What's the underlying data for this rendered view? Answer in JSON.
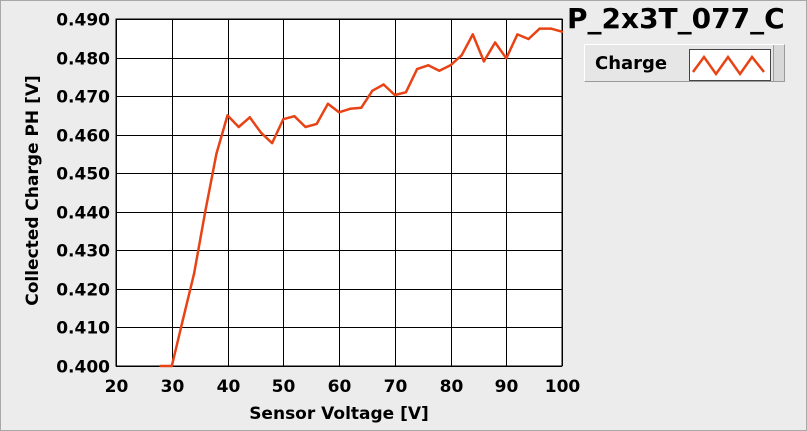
{
  "chart_data": {
    "type": "line",
    "title": "P_2x3T_077_C",
    "xlabel": "Sensor Voltage [V]",
    "ylabel": "Collected Charge PH [V]",
    "xlim": [
      20,
      100
    ],
    "ylim": [
      0.4,
      0.49
    ],
    "xticks": [
      20,
      30,
      40,
      50,
      60,
      70,
      80,
      90,
      100
    ],
    "yticks": [
      "0.400",
      "0.410",
      "0.420",
      "0.430",
      "0.440",
      "0.450",
      "0.460",
      "0.470",
      "0.480",
      "0.490"
    ],
    "grid": true,
    "legend_position": "top-right",
    "series": [
      {
        "name": "Charge",
        "color": "#e84315",
        "x": [
          28,
          30,
          32,
          34,
          36,
          38,
          40,
          42,
          44,
          46,
          48,
          50,
          52,
          54,
          56,
          58,
          60,
          62,
          64,
          66,
          68,
          70,
          72,
          74,
          76,
          78,
          80,
          82,
          84,
          86,
          88,
          90,
          92,
          94,
          96,
          98,
          100
        ],
        "y": [
          0.4,
          0.4,
          0.412,
          0.424,
          0.44,
          0.455,
          0.465,
          0.462,
          0.4645,
          0.4605,
          0.4578,
          0.464,
          0.4648,
          0.462,
          0.4628,
          0.468,
          0.4658,
          0.4667,
          0.467,
          0.4714,
          0.473,
          0.4703,
          0.471,
          0.477,
          0.478,
          0.4766,
          0.478,
          0.4806,
          0.486,
          0.479,
          0.4839,
          0.4798,
          0.486,
          0.4848,
          0.4875,
          0.4875,
          0.4867
        ]
      }
    ]
  }
}
